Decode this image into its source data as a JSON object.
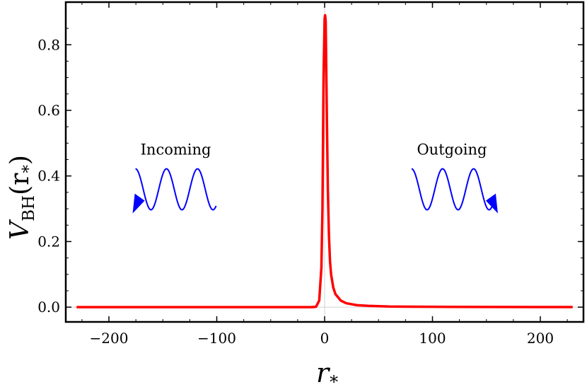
{
  "chart_data": {
    "type": "line",
    "title": "",
    "xlabel": "r",
    "xlabel_sub": "*",
    "ylabel": "V",
    "ylabel_sub": "BH",
    "ylabel_arg": "(r",
    "ylabel_arg_sub": "*",
    "ylabel_close": ")",
    "xlim": [
      -240,
      240
    ],
    "ylim": [
      -0.045,
      0.93
    ],
    "xticks": [
      -200,
      -100,
      0,
      100,
      200
    ],
    "xtick_labels": [
      "−200",
      "−100",
      "0",
      "100",
      "200"
    ],
    "yticks": [
      0.0,
      0.2,
      0.4,
      0.6,
      0.8
    ],
    "ytick_labels": [
      "0.0",
      "0.2",
      "0.4",
      "0.6",
      "0.8"
    ],
    "grid": false,
    "reference_lines": {
      "x": 0,
      "y": 0,
      "color": "#d0d0d0"
    },
    "series": [
      {
        "color": "#ff0000",
        "x": [
          -230,
          -100,
          -30,
          -12,
          -8,
          -5,
          -3,
          -2,
          -1,
          0,
          0.5,
          1,
          2,
          3,
          4,
          5,
          6,
          8,
          10,
          15,
          20,
          30,
          40,
          60,
          80,
          100,
          150,
          200,
          230
        ],
        "y": [
          0.0,
          0.0,
          0.0,
          0.0,
          0.001,
          0.02,
          0.12,
          0.3,
          0.7,
          0.88,
          0.89,
          0.87,
          0.6,
          0.36,
          0.22,
          0.14,
          0.1,
          0.06,
          0.04,
          0.02,
          0.012,
          0.006,
          0.004,
          0.002,
          0.0015,
          0.001,
          0.0005,
          0.0003,
          0.0002
        ]
      }
    ],
    "annotations": [
      {
        "text": "Incoming",
        "x": -138,
        "y": 0.465,
        "arrow": "left"
      },
      {
        "text": "Outgoing",
        "x": 118,
        "y": 0.465,
        "arrow": "right"
      }
    ],
    "annotation_color": "#0000ff"
  }
}
